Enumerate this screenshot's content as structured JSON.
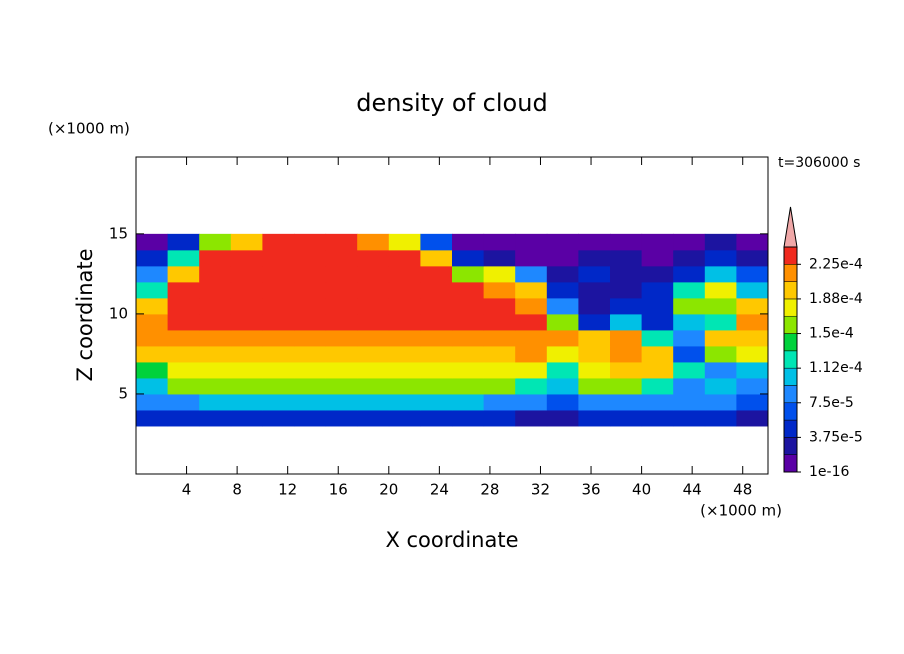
{
  "chart_data": {
    "type": "contour",
    "title": "density of cloud",
    "time_label": "t=306000 s",
    "x_label": "X coordinate",
    "y_label": "Z coordinate",
    "x_unit_label": "(×1000 m)",
    "y_unit_label": "(×1000 m)",
    "xlim": [
      0,
      50
    ],
    "ylim": [
      0,
      19.8
    ],
    "xticks": [
      4,
      8,
      12,
      16,
      20,
      24,
      28,
      32,
      36,
      40,
      44,
      48
    ],
    "yticks": [
      5,
      10,
      15
    ],
    "x": [
      1.25,
      3.75,
      6.25,
      8.75,
      11.25,
      13.75,
      16.25,
      18.75,
      21.25,
      23.75,
      26.25,
      28.75,
      31.25,
      33.75,
      36.25,
      38.75,
      41.25,
      43.75,
      46.25,
      48.75
    ],
    "z": [
      3.5,
      4.5,
      5.5,
      6.5,
      7.5,
      8.5,
      9.5,
      10.5,
      11.5,
      12.5,
      13.5,
      14.5
    ],
    "z_values": [
      [
        4e-05,
        5e-05,
        4e-05,
        4e-05,
        4e-05,
        4e-05,
        4e-05,
        4e-05,
        4e-05,
        4e-05,
        4e-05,
        4e-05,
        3e-05,
        3e-05,
        4e-05,
        4e-05,
        4e-05,
        4e-05,
        4e-05,
        3e-05
      ],
      [
        8e-05,
        8e-05,
        0.0001,
        0.0001,
        0.0001,
        0.0001,
        0.0001,
        0.0001,
        0.0001,
        0.0001,
        0.0001,
        9e-05,
        8e-05,
        6e-05,
        8e-05,
        9e-05,
        8e-05,
        9e-05,
        8e-05,
        6e-05
      ],
      [
        0.0001,
        0.00015,
        0.00016,
        0.00016,
        0.00016,
        0.00016,
        0.00016,
        0.00016,
        0.00016,
        0.00016,
        0.00016,
        0.00015,
        0.00013,
        0.0001,
        0.00015,
        0.00016,
        0.00012,
        8e-05,
        0.0001,
        8e-05
      ],
      [
        0.00014,
        0.00018,
        0.00018,
        0.00018,
        0.00018,
        0.00018,
        0.00018,
        0.00018,
        0.00018,
        0.00018,
        0.00018,
        0.00018,
        0.00018,
        0.00012,
        0.00018,
        0.00019,
        0.00019,
        0.00012,
        8e-05,
        0.0001
      ],
      [
        0.0002,
        0.0002,
        0.0002,
        0.0002,
        0.0002,
        0.0002,
        0.0002,
        0.0002,
        0.0002,
        0.0002,
        0.0002,
        0.0002,
        0.00021,
        0.00018,
        0.0002,
        0.00022,
        0.0002,
        6e-05,
        0.00015,
        0.00018
      ],
      [
        0.00022,
        0.00021,
        0.00022,
        0.00022,
        0.00022,
        0.00022,
        0.00022,
        0.00022,
        0.00022,
        0.00022,
        0.00022,
        0.00022,
        0.00022,
        0.00022,
        0.0002,
        0.00022,
        0.00012,
        8e-05,
        0.0002,
        0.0002
      ],
      [
        0.00022,
        0.00023,
        0.00023,
        0.00023,
        0.00023,
        0.00023,
        0.00023,
        0.00023,
        0.00023,
        0.00023,
        0.00023,
        0.00023,
        0.00023,
        0.00015,
        5e-05,
        0.0001,
        4e-05,
        0.0001,
        0.00012,
        0.00022
      ],
      [
        0.0002,
        0.00024,
        0.00024,
        0.00024,
        0.00024,
        0.00024,
        0.00024,
        0.00024,
        0.00024,
        0.00023,
        0.00023,
        0.00023,
        0.00022,
        8e-05,
        3e-05,
        4e-05,
        5e-05,
        0.00015,
        0.00015,
        0.0002
      ],
      [
        0.00012,
        0.00024,
        0.00024,
        0.00024,
        0.00024,
        0.00024,
        0.00024,
        0.00024,
        0.00024,
        0.00023,
        0.00023,
        0.00022,
        0.0002,
        5e-05,
        3e-05,
        3e-05,
        4e-05,
        0.00012,
        0.00018,
        0.0001
      ],
      [
        8e-05,
        0.0002,
        0.00024,
        0.00024,
        0.00024,
        0.00024,
        0.00024,
        0.00024,
        0.00024,
        0.00023,
        0.00015,
        0.00018,
        8e-05,
        3e-05,
        5e-05,
        2e-05,
        3e-05,
        4e-05,
        0.0001,
        6e-05
      ],
      [
        5e-05,
        0.00012,
        0.00023,
        0.00024,
        0.00024,
        0.00024,
        0.00024,
        0.00024,
        0.00023,
        0.0002,
        5e-05,
        2e-05,
        1e-05,
        1e-05,
        2e-05,
        3e-05,
        1e-05,
        2e-05,
        5e-05,
        3e-05
      ],
      [
        1e-05,
        5e-05,
        0.00015,
        0.0002,
        0.00023,
        0.00023,
        0.00023,
        0.00022,
        0.00018,
        6e-05,
        1e-05,
        1e-05,
        1e-05,
        1e-05,
        1e-05,
        1e-05,
        1e-05,
        1e-05,
        3e-05,
        1e-05
      ]
    ],
    "levels": [
      1e-16,
      1.875e-05,
      3.75e-05,
      5.625e-05,
      7.5e-05,
      9.375e-05,
      0.0001125,
      0.00013125,
      0.00015,
      0.00016875,
      0.0001875,
      0.00020625,
      0.000225,
      0.00024375
    ],
    "colors": [
      "#5a00a5",
      "#1c14a0",
      "#0028c8",
      "#0050ec",
      "#1e88ff",
      "#00c0e6",
      "#00e6b4",
      "#00d23c",
      "#8ce600",
      "#f0f000",
      "#ffc800",
      "#ff9000",
      "#f02a1e"
    ],
    "over_color": "#f0a8a8",
    "colorbar_ticks": [
      {
        "value": 1e-16,
        "label": "1e-16"
      },
      {
        "value": 3.75e-05,
        "label": "3.75e-5"
      },
      {
        "value": 7.5e-05,
        "label": "7.5e-5"
      },
      {
        "value": 0.0001125,
        "label": "1.12e-4"
      },
      {
        "value": 0.00015,
        "label": "1.5e-4"
      },
      {
        "value": 0.0001875,
        "label": "1.88e-4"
      },
      {
        "value": 0.000225,
        "label": "2.25e-4"
      }
    ]
  }
}
